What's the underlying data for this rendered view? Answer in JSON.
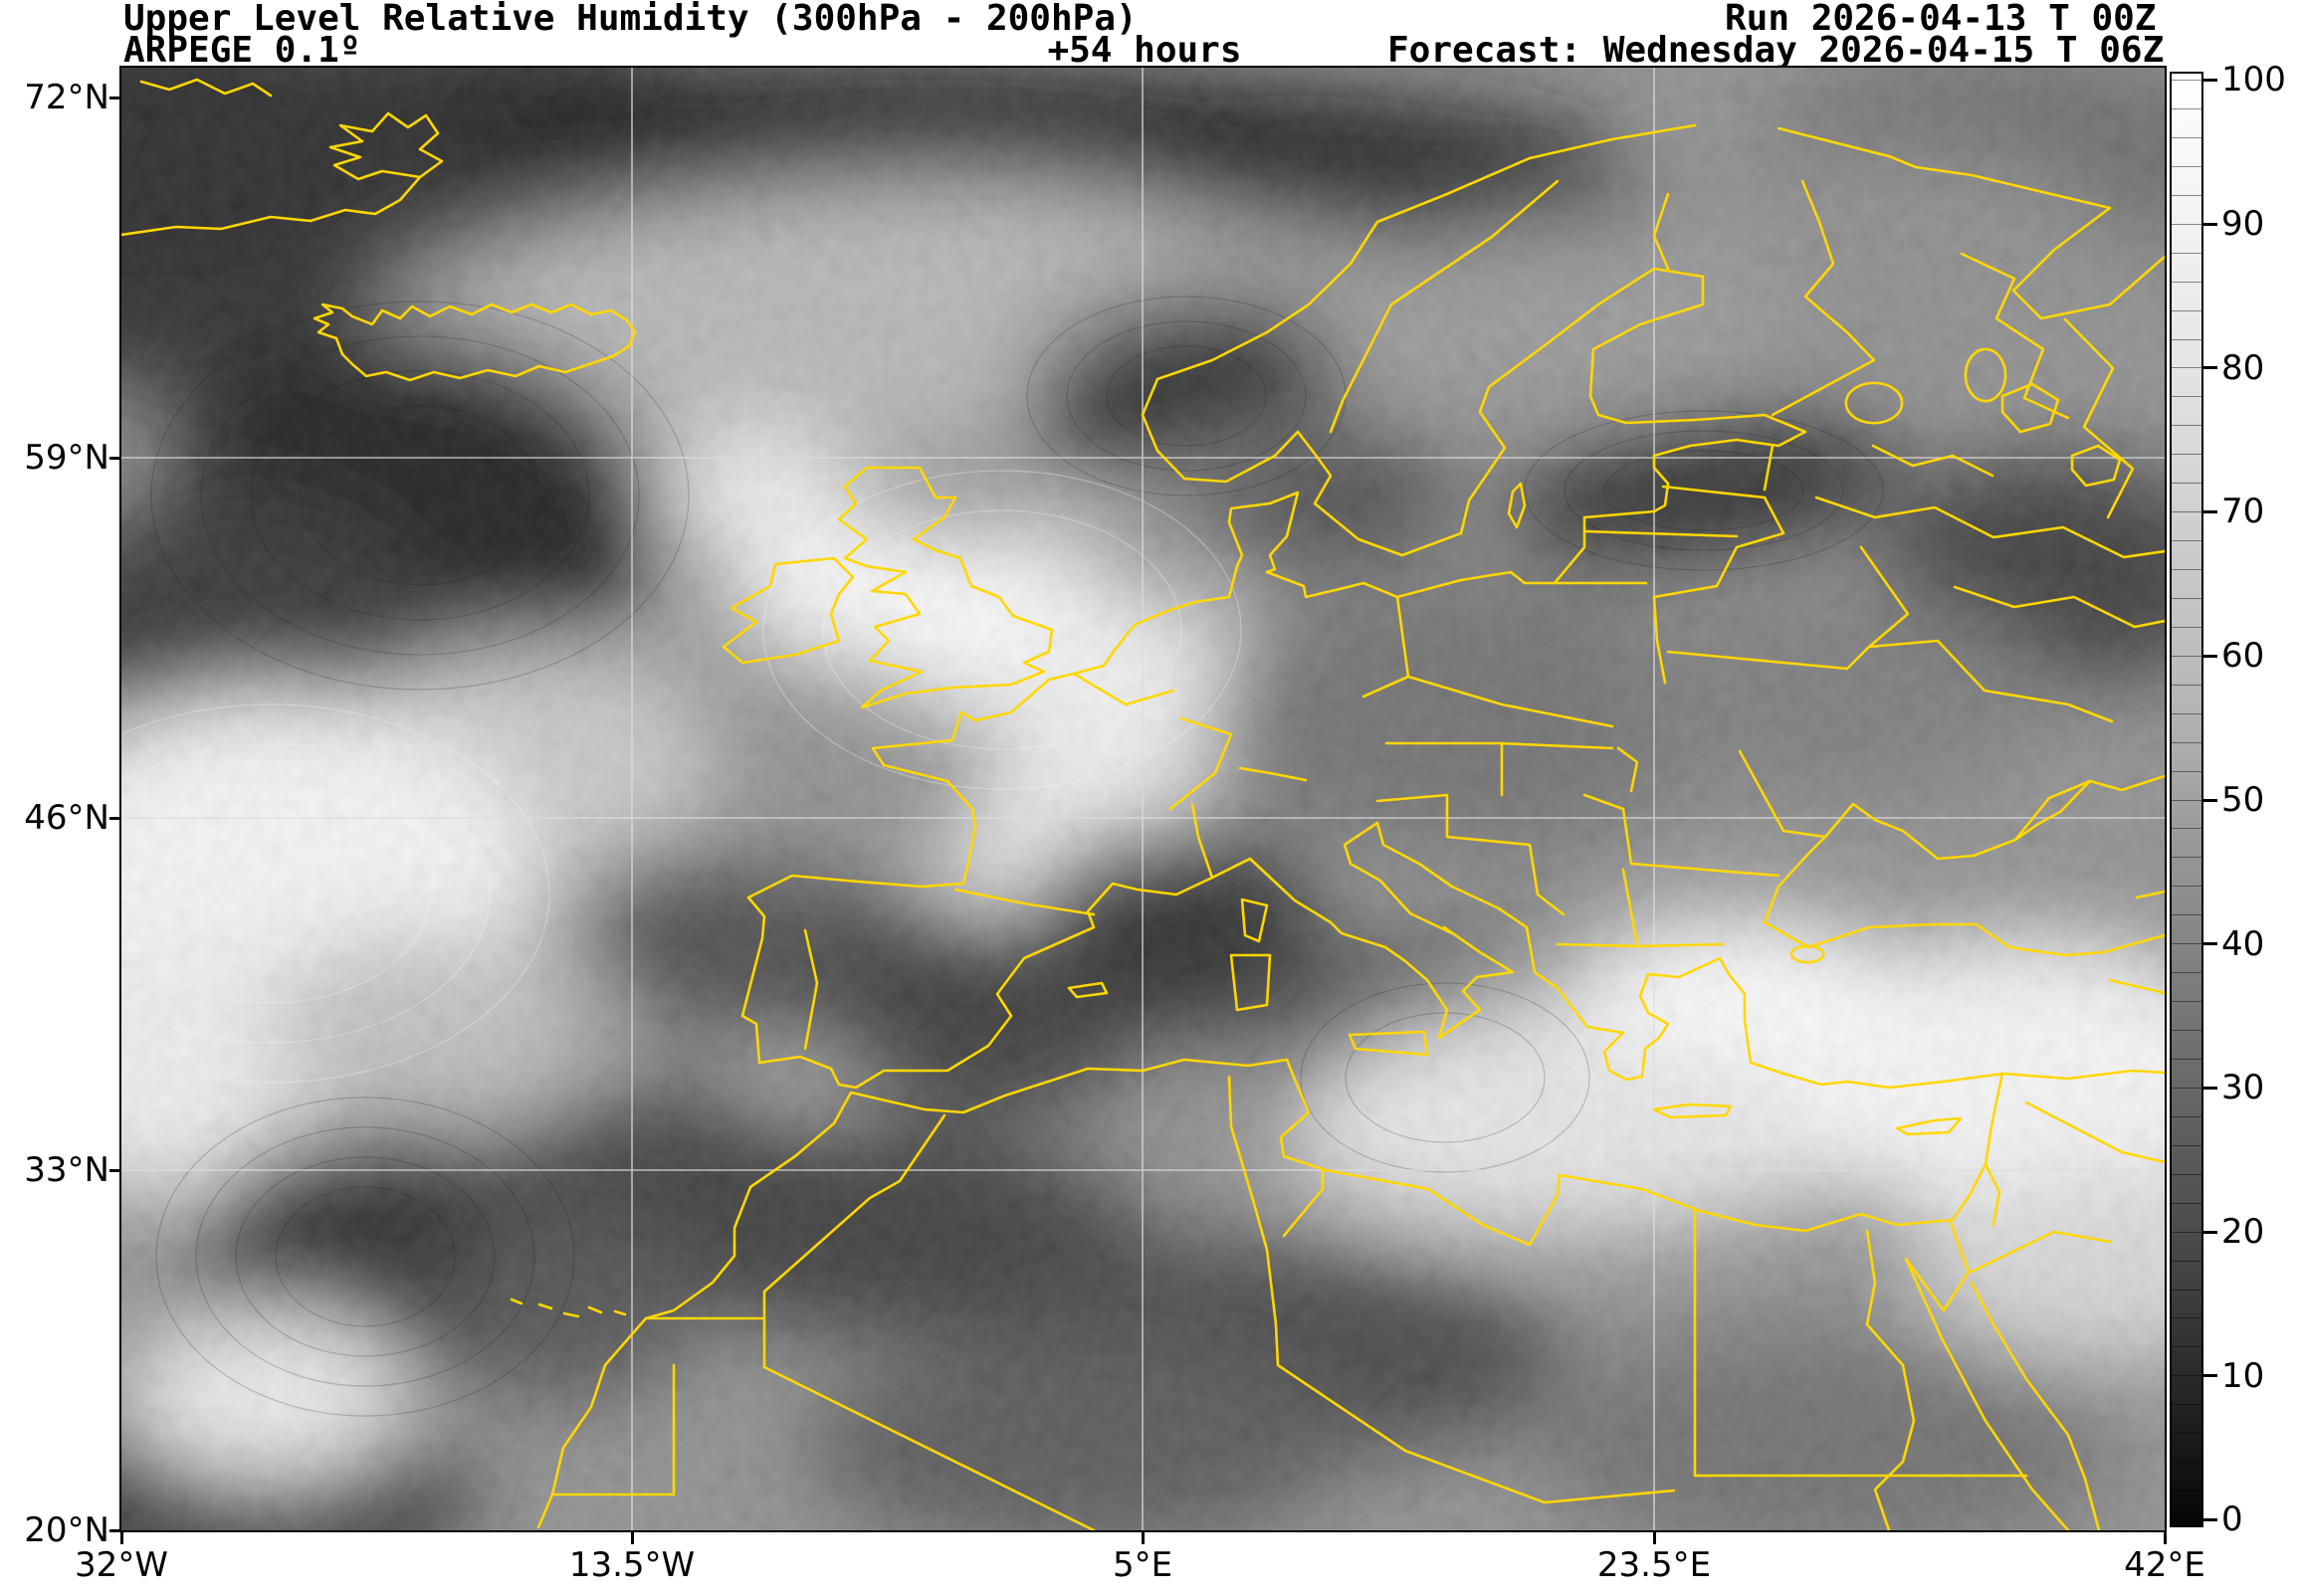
{
  "header": {
    "title": "Upper Level Relative Humidity (300hPa - 200hPa)",
    "model": "ARPEGE 0.1º",
    "lead_time": "+54 hours",
    "run": "Run 2026-04-13 T 00Z",
    "forecast": "Forecast: Wednesday 2026-04-15 T 06Z"
  },
  "chart_data": {
    "type": "heatmap",
    "title": "Upper Level Relative Humidity (300hPa - 200hPa)",
    "subtitle_left": "ARPEGE 0.1º",
    "subtitle_center": "+54 hours",
    "run_label": "Run 2026-04-13 T 00Z",
    "forecast_label": "Forecast: Wednesday 2026-04-15 T 06Z",
    "field": "relative humidity (%) in the 300hPa-200hPa layer over Europe / North Atlantic",
    "x_axis": {
      "ticks": [
        "32°W",
        "13.5°W",
        "5°E",
        "23.5°E",
        "42°E"
      ]
    },
    "y_axis": {
      "ticks": [
        "72°N",
        "59°N",
        "46°N",
        "33°N",
        "20°N"
      ]
    },
    "colorbar": {
      "min": 0,
      "max": 100,
      "major_ticks": [
        100,
        90,
        80,
        70,
        60,
        50,
        40,
        30,
        20,
        10,
        0
      ],
      "minor_step": 2,
      "colormap": "grayscale: 0=black (dry) to 100=white (moist)"
    },
    "grid": "on",
    "overlays": [
      "yellow national borders and coastlines",
      "latitude/longitude gridlines"
    ]
  },
  "colors": {
    "coastline_yellow": "#FFD700",
    "grid_gray": "#DCDCDC",
    "text": "#000000",
    "background": "#FFFFFF",
    "colorbar_top": "#FFFFFF",
    "colorbar_bottom": "#060606"
  }
}
